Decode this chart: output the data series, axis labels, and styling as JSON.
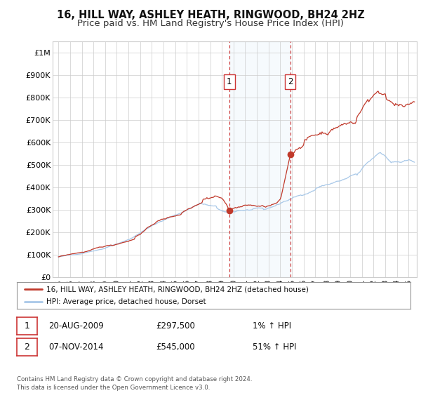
{
  "title": "16, HILL WAY, ASHLEY HEATH, RINGWOOD, BH24 2HZ",
  "subtitle": "Price paid vs. HM Land Registry's House Price Index (HPI)",
  "ylabel_ticks": [
    "£0",
    "£100K",
    "£200K",
    "£300K",
    "£400K",
    "£500K",
    "£600K",
    "£700K",
    "£800K",
    "£900K",
    "£1M"
  ],
  "ytick_values": [
    0,
    100000,
    200000,
    300000,
    400000,
    500000,
    600000,
    700000,
    800000,
    900000,
    1000000
  ],
  "ylim": [
    0,
    1050000
  ],
  "xlim_start": 1994.5,
  "xlim_end": 2025.7,
  "xtick_years": [
    1995,
    1996,
    1997,
    1998,
    1999,
    2000,
    2001,
    2002,
    2003,
    2004,
    2005,
    2006,
    2007,
    2008,
    2009,
    2010,
    2011,
    2012,
    2013,
    2014,
    2015,
    2016,
    2017,
    2018,
    2019,
    2020,
    2021,
    2022,
    2023,
    2024,
    2025
  ],
  "hpi_color": "#a8c8e8",
  "price_color": "#c0392b",
  "sale1_date": 2009.63,
  "sale1_price": 297500,
  "sale1_label": "1",
  "sale2_date": 2014.85,
  "sale2_price": 545000,
  "sale2_label": "2",
  "vline_color": "#cc3333",
  "vline_shade_color": "#ddeef8",
  "legend_label_price": "16, HILL WAY, ASHLEY HEATH, RINGWOOD, BH24 2HZ (detached house)",
  "legend_label_hpi": "HPI: Average price, detached house, Dorset",
  "table_row1_num": "1",
  "table_row1_date": "20-AUG-2009",
  "table_row1_price": "£297,500",
  "table_row1_hpi": "1% ↑ HPI",
  "table_row2_num": "2",
  "table_row2_date": "07-NOV-2014",
  "table_row2_price": "£545,000",
  "table_row2_hpi": "51% ↑ HPI",
  "footer": "Contains HM Land Registry data © Crown copyright and database right 2024.\nThis data is licensed under the Open Government Licence v3.0.",
  "bg_color": "#ffffff",
  "grid_color": "#cccccc",
  "title_fontsize": 10.5,
  "subtitle_fontsize": 9.5
}
